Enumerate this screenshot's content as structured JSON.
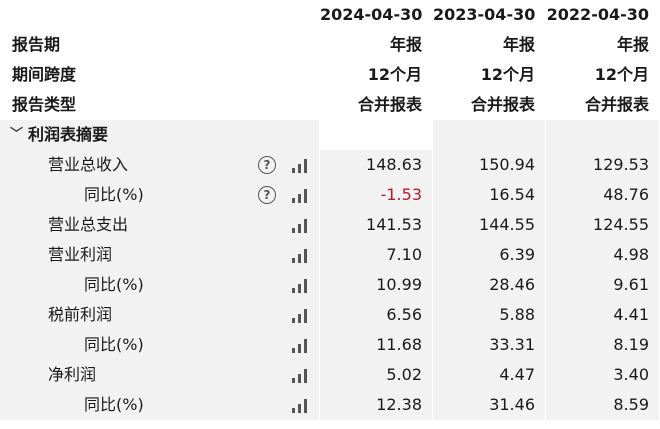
{
  "header": {
    "dates": [
      "2024-04-30",
      "2023-04-30",
      "2022-04-30"
    ],
    "period_label": "报告期",
    "periods": [
      "年报",
      "年报",
      "年报"
    ],
    "span_label": "期间跨度",
    "spans": [
      "12个月",
      "12个月",
      "12个月"
    ],
    "type_label": "报告类型",
    "types": [
      "合并报表",
      "合并报表",
      "合并报表"
    ]
  },
  "section": {
    "title": "利润表摘要",
    "icon": "chevron-down-icon"
  },
  "rows": [
    {
      "label": "营业总收入",
      "values": [
        "148.63",
        "150.94",
        "129.53"
      ]
    },
    {
      "label": "同比(%)",
      "values": [
        "-1.53",
        "16.54",
        "48.76"
      ]
    },
    {
      "label": "营业总支出",
      "values": [
        "141.53",
        "144.55",
        "124.55"
      ]
    },
    {
      "label": "营业利润",
      "values": [
        "7.10",
        "6.39",
        "4.98"
      ]
    },
    {
      "label": "同比(%)",
      "values": [
        "10.99",
        "28.46",
        "9.61"
      ]
    },
    {
      "label": "税前利润",
      "values": [
        "6.56",
        "5.88",
        "4.41"
      ]
    },
    {
      "label": "同比(%)",
      "values": [
        "11.68",
        "33.31",
        "8.19"
      ]
    },
    {
      "label": "净利润",
      "values": [
        "5.02",
        "4.47",
        "3.40"
      ]
    },
    {
      "label": "同比(%)",
      "values": [
        "12.38",
        "31.46",
        "8.59"
      ]
    }
  ],
  "colors": {
    "negative": "#b8182f",
    "row_bg": "#f2f2f2"
  }
}
